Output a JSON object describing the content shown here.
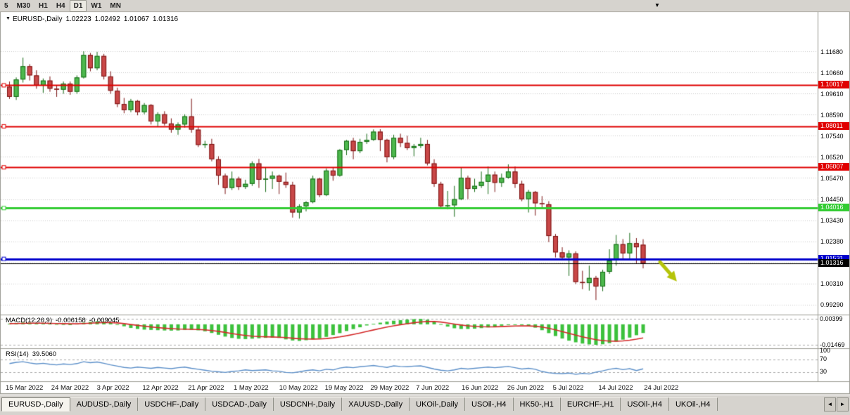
{
  "toolbar": {
    "periods": [
      "5",
      "M30",
      "H1",
      "H4",
      "D1",
      "W1",
      "MN"
    ],
    "active_period": "D1",
    "dropdown_icon": "▼"
  },
  "chart_title": {
    "marker": "▼",
    "symbol_label": "EURUSD-,Daily"
  },
  "colors": {
    "background": "#ffffff",
    "grid": "#c9c9c9",
    "frame": "#9a9a92",
    "up_fill": "#4db84d",
    "up_border": "#156a15",
    "down_fill": "#c94848",
    "down_border": "#7c1414",
    "macd_bar": "#3cc13c",
    "macd_signal": "#d42a2a",
    "rsi_line": "#5b8fc9",
    "level_dash": "#a6a6a6"
  },
  "chart_data": {
    "type": "candlestick",
    "symbol": "EURUSD",
    "timeframe": "Daily",
    "current_ohlc": {
      "open": "1.02223",
      "high": "1.02492",
      "low": "1.01067",
      "close": "1.01316"
    },
    "ylim": [
      0.9929,
      1.1168
    ],
    "y_ticks": [
      "1.11680",
      "1.10660",
      "1.09610",
      "1.08590",
      "1.07540",
      "1.06520",
      "1.05470",
      "1.04450",
      "1.03430",
      "1.02380",
      "1.01360",
      "1.00310",
      "0.99290"
    ],
    "x_labels": [
      "15 Mar 2022",
      "24 Mar 2022",
      "3 Apr 2022",
      "12 Apr 2022",
      "21 Apr 2022",
      "1 May 2022",
      "10 May 2022",
      "19 May 2022",
      "29 May 2022",
      "7 Jun 2022",
      "16 Jun 2022",
      "26 Jun 2022",
      "5 Jul 2022",
      "14 Jul 2022",
      "24 Jul 2022"
    ],
    "hlines": [
      {
        "price": 1.10017,
        "label": "1.10017",
        "color": "#e00000",
        "width": 2
      },
      {
        "price": 1.08011,
        "label": "1.08011",
        "color": "#e00000",
        "width": 2
      },
      {
        "price": 1.06007,
        "label": "1.06007",
        "color": "#e00000",
        "width": 2
      },
      {
        "price": 1.04016,
        "label": "1.04016",
        "color": "#33cc33",
        "width": 3
      },
      {
        "price": 1.01531,
        "label": "1.01531",
        "color": "#0000cc",
        "width": 3
      },
      {
        "price": 1.01316,
        "label": "1.01316",
        "color": "#000000",
        "width": 1,
        "current": true
      }
    ],
    "arrow": {
      "from_candle": 96.5,
      "from_price": 1.0138,
      "to_candle": 99.0,
      "to_price": 1.0043,
      "color": "#b5c409"
    },
    "candles": [
      [
        1.0995,
        1.102,
        1.0935,
        1.0945
      ],
      [
        1.0945,
        1.104,
        1.093,
        1.103
      ],
      [
        1.103,
        1.1137,
        1.1015,
        1.1095
      ],
      [
        1.1095,
        1.1105,
        1.1025,
        1.105
      ],
      [
        1.105,
        1.1075,
        1.0985,
        1.1
      ],
      [
        1.1,
        1.1035,
        1.0965,
        1.1025
      ],
      [
        1.1025,
        1.1045,
        1.097,
        1.0985
      ],
      [
        1.0985,
        1.1,
        1.0945,
        1.098
      ],
      [
        1.098,
        1.102,
        1.096,
        1.101
      ],
      [
        1.101,
        1.102,
        1.0955,
        1.097
      ],
      [
        1.097,
        1.105,
        1.096,
        1.104
      ],
      [
        1.104,
        1.1168,
        1.1035,
        1.115
      ],
      [
        1.115,
        1.116,
        1.107,
        1.1085
      ],
      [
        1.1085,
        1.1165,
        1.1075,
        1.1145
      ],
      [
        1.1145,
        1.1155,
        1.103,
        1.1045
      ],
      [
        1.1045,
        1.107,
        1.096,
        1.0975
      ],
      [
        1.0975,
        1.099,
        1.0895,
        1.091
      ],
      [
        1.091,
        1.094,
        1.0865,
        1.088
      ],
      [
        1.088,
        1.0935,
        1.087,
        1.0925
      ],
      [
        1.0925,
        1.093,
        1.0855,
        1.087
      ],
      [
        1.087,
        1.0915,
        1.086,
        1.0905
      ],
      [
        1.0905,
        1.091,
        1.081,
        1.0825
      ],
      [
        1.0825,
        1.087,
        1.08,
        1.086
      ],
      [
        1.086,
        1.0875,
        1.0805,
        1.0815
      ],
      [
        1.0815,
        1.084,
        1.077,
        1.0785
      ],
      [
        1.0785,
        1.082,
        1.076,
        1.081
      ],
      [
        1.081,
        1.086,
        1.0795,
        1.085
      ],
      [
        1.085,
        1.0936,
        1.077,
        1.0785
      ],
      [
        1.0785,
        1.08,
        1.07,
        1.071
      ],
      [
        1.071,
        1.073,
        1.0695,
        1.0715
      ],
      [
        1.0715,
        1.074,
        1.063,
        1.064
      ],
      [
        1.064,
        1.0655,
        1.0515,
        1.056
      ],
      [
        1.056,
        1.057,
        1.047,
        1.05
      ],
      [
        1.05,
        1.058,
        1.049,
        1.0545
      ],
      [
        1.0545,
        1.0555,
        1.049,
        1.0505
      ],
      [
        1.0505,
        1.054,
        1.0495,
        1.052
      ],
      [
        1.052,
        1.063,
        1.051,
        1.062
      ],
      [
        1.062,
        1.0642,
        1.05,
        1.054
      ],
      [
        1.054,
        1.06,
        1.048,
        1.0545
      ],
      [
        1.0545,
        1.058,
        1.0495,
        1.056
      ],
      [
        1.056,
        1.0565,
        1.047,
        1.053
      ],
      [
        1.053,
        1.0575,
        1.05,
        1.0515
      ],
      [
        1.0515,
        1.053,
        1.0355,
        1.038
      ],
      [
        1.038,
        1.042,
        1.035,
        1.041
      ],
      [
        1.041,
        1.0435,
        1.0385,
        1.043
      ],
      [
        1.043,
        1.056,
        1.0425,
        1.0545
      ],
      [
        1.0545,
        1.055,
        1.0455,
        1.0465
      ],
      [
        1.0465,
        1.0595,
        1.046,
        1.0585
      ],
      [
        1.0585,
        1.06,
        1.0535,
        1.056
      ],
      [
        1.056,
        1.069,
        1.0555,
        1.0685
      ],
      [
        1.0685,
        1.0735,
        1.066,
        1.073
      ],
      [
        1.073,
        1.0745,
        1.064,
        1.068
      ],
      [
        1.068,
        1.074,
        1.067,
        1.0725
      ],
      [
        1.0725,
        1.0765,
        1.0715,
        1.0735
      ],
      [
        1.0735,
        1.0786,
        1.073,
        1.0775
      ],
      [
        1.0775,
        1.0787,
        1.068,
        1.0735
      ],
      [
        1.0735,
        1.074,
        1.0625,
        1.065
      ],
      [
        1.065,
        1.076,
        1.064,
        1.0745
      ],
      [
        1.0745,
        1.0765,
        1.07,
        1.072
      ],
      [
        1.072,
        1.0755,
        1.0685,
        1.0695
      ],
      [
        1.0695,
        1.0715,
        1.0655,
        1.0705
      ],
      [
        1.0705,
        1.0745,
        1.0695,
        1.0715
      ],
      [
        1.0715,
        1.0735,
        1.061,
        1.062
      ],
      [
        1.062,
        1.064,
        1.0505,
        1.052
      ],
      [
        1.052,
        1.053,
        1.04,
        1.041
      ],
      [
        1.041,
        1.0485,
        1.0395,
        1.0415
      ],
      [
        1.0415,
        1.051,
        1.0359,
        1.0445
      ],
      [
        1.0445,
        1.06,
        1.044,
        1.055
      ],
      [
        1.055,
        1.056,
        1.0445,
        1.0495
      ],
      [
        1.0495,
        1.0545,
        1.048,
        1.051
      ],
      [
        1.051,
        1.058,
        1.05,
        1.053
      ],
      [
        1.053,
        1.0605,
        1.047,
        1.0565
      ],
      [
        1.0565,
        1.058,
        1.048,
        1.0525
      ],
      [
        1.0525,
        1.057,
        1.0505,
        1.055
      ],
      [
        1.055,
        1.0615,
        1.0545,
        1.058
      ],
      [
        1.058,
        1.0605,
        1.05,
        1.052
      ],
      [
        1.052,
        1.0535,
        1.0435,
        1.0445
      ],
      [
        1.0445,
        1.049,
        1.038,
        1.048
      ],
      [
        1.048,
        1.0485,
        1.0365,
        1.0425
      ],
      [
        1.0425,
        1.046,
        1.04,
        1.042
      ],
      [
        1.042,
        1.0435,
        1.0235,
        1.0265
      ],
      [
        1.0265,
        1.0275,
        1.016,
        1.0185
      ],
      [
        1.0185,
        1.021,
        1.0145,
        1.016
      ],
      [
        1.016,
        1.0195,
        1.007,
        1.018
      ],
      [
        1.018,
        1.019,
        1.003,
        1.004
      ],
      [
        1.004,
        1.0095,
        1.0005,
        1.0035
      ],
      [
        1.0035,
        1.012,
        0.9998,
        1.006
      ],
      [
        1.006,
        1.007,
        0.9952,
        1.0018
      ],
      [
        1.0018,
        1.01,
        0.9995,
        1.009
      ],
      [
        1.009,
        1.02,
        1.008,
        1.0145
      ],
      [
        1.0145,
        1.027,
        1.012,
        1.0225
      ],
      [
        1.0225,
        1.025,
        1.0155,
        1.018
      ],
      [
        1.018,
        1.028,
        1.015,
        1.023
      ],
      [
        1.023,
        1.0255,
        1.013,
        1.021
      ],
      [
        1.02223,
        1.02492,
        1.01067,
        1.01316
      ]
    ],
    "indicators": {
      "macd": {
        "name": "MACD(12,26,9)",
        "main_value": "-0.006158",
        "signal_value": "-0.009045",
        "axis_labels": [
          "0.00399",
          "-0.01469"
        ],
        "values": [
          0.0005,
          0.001,
          0.0013,
          0.0012,
          0.0009,
          0.0006,
          0.0004,
          0.0002,
          0.0001,
          0.0,
          0.0004,
          0.0012,
          0.0018,
          0.0022,
          0.002,
          0.0012,
          0.0,
          -0.0014,
          -0.0026,
          -0.0033,
          -0.0038,
          -0.004,
          -0.0042,
          -0.0044,
          -0.0045,
          -0.0044,
          -0.004,
          -0.004,
          -0.0043,
          -0.005,
          -0.0062,
          -0.0075,
          -0.0088,
          -0.0098,
          -0.0104,
          -0.0106,
          -0.0103,
          -0.01,
          -0.0097,
          -0.0096,
          -0.0098,
          -0.0108,
          -0.0116,
          -0.0119,
          -0.0114,
          -0.0108,
          -0.01,
          -0.009,
          -0.0077,
          -0.0063,
          -0.0048,
          -0.0034,
          -0.0021,
          -0.0008,
          0.0004,
          0.0012,
          0.002,
          0.0026,
          0.003,
          0.0034,
          0.0037,
          0.0039,
          0.0033,
          0.002,
          0.0002,
          -0.0016,
          -0.0028,
          -0.0033,
          -0.0033,
          -0.0031,
          -0.0027,
          -0.0022,
          -0.0016,
          -0.001,
          -0.0005,
          -0.0003,
          -0.0006,
          -0.0013,
          -0.0024,
          -0.0042,
          -0.0063,
          -0.0084,
          -0.0102,
          -0.0117,
          -0.0129,
          -0.0138,
          -0.0144,
          -0.0147,
          -0.0143,
          -0.0135,
          -0.0124,
          -0.011,
          -0.0095,
          -0.0078,
          -0.0062
        ]
      },
      "rsi": {
        "name": "RSI(14)",
        "value": "39.5060",
        "axis_labels": [
          "100",
          "70",
          "30"
        ],
        "levels": [
          70,
          30
        ],
        "range": [
          0,
          100
        ],
        "values": [
          56,
          60,
          62,
          58,
          55,
          57,
          54,
          52,
          55,
          53,
          56,
          62,
          59,
          61,
          57,
          52,
          48,
          44,
          42,
          45,
          43,
          41,
          44,
          42,
          40,
          43,
          45,
          41,
          38,
          35,
          32,
          30,
          28,
          31,
          33,
          36,
          34,
          35,
          36,
          33,
          32,
          28,
          27,
          30,
          34,
          36,
          33,
          38,
          36,
          42,
          45,
          43,
          46,
          48,
          50,
          47,
          44,
          49,
          47,
          46,
          48,
          49,
          44,
          39,
          35,
          33,
          36,
          41,
          39,
          41,
          43,
          45,
          43,
          45,
          47,
          43,
          39,
          41,
          38,
          31,
          27,
          25,
          24,
          26,
          22,
          25,
          23,
          29,
          33,
          38,
          41,
          37,
          40,
          34,
          39.5
        ]
      }
    }
  },
  "tabs": {
    "scroll_left_icon": "◄",
    "scroll_right_icon": "►",
    "items": [
      {
        "label": "EURUSD-,Daily",
        "active": true
      },
      {
        "label": "AUDUSD-,Daily"
      },
      {
        "label": "USDCHF-,Daily"
      },
      {
        "label": "USDCAD-,Daily"
      },
      {
        "label": "USDCNH-,Daily"
      },
      {
        "label": "XAUUSD-,Daily"
      },
      {
        "label": "UKOil-,Daily"
      },
      {
        "label": "USOil-,H4"
      },
      {
        "label": "HK50-,H1"
      },
      {
        "label": "EURCHF-,H1"
      },
      {
        "label": "USOil-,H4"
      },
      {
        "label": "UKOil-,H4"
      }
    ]
  }
}
